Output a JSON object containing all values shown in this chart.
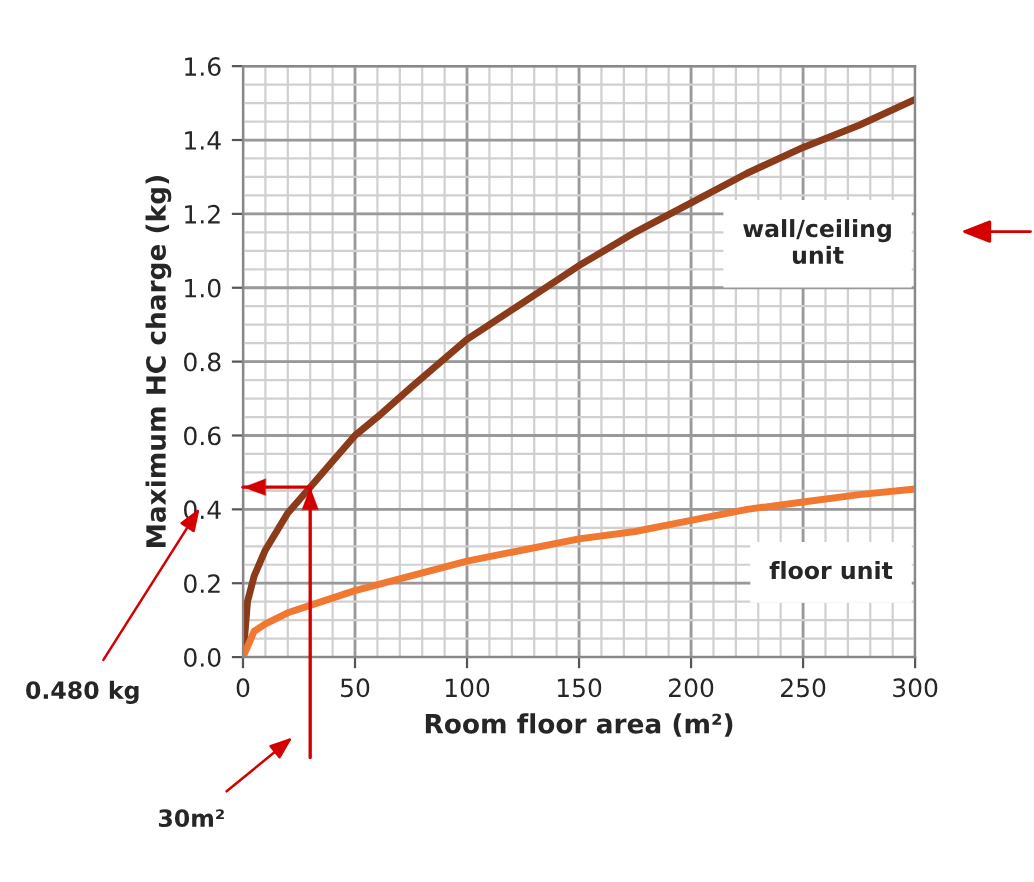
{
  "chart_data": {
    "type": "line",
    "xlabel": "Room floor area (m²)",
    "ylabel": "Maximum HC charge (kg)",
    "xlim": [
      0,
      300
    ],
    "xticks": [
      0,
      50,
      100,
      150,
      200,
      250,
      300
    ],
    "ylim": [
      0,
      1.6
    ],
    "yticks": [
      {
        "value": 0,
        "label": "0.0"
      },
      {
        "value": 0.2,
        "label": "0.2"
      },
      {
        "value": 0.4,
        "label": "0.4"
      },
      {
        "value": 0.6,
        "label": "0.6"
      },
      {
        "value": 0.8,
        "label": "0.8"
      },
      {
        "value": 1.0,
        "label": "1.0"
      },
      {
        "value": 1.2,
        "label": "1.2"
      },
      {
        "value": 1.4,
        "label": "1.4"
      },
      {
        "value": 1.6,
        "label": "1.6"
      }
    ],
    "grid": true,
    "legend": false,
    "marker": "none",
    "line_style": "solid",
    "series": [
      {
        "name": "wall/ceiling unit",
        "color": "#8b3a1a",
        "x": [
          0,
          2,
          5,
          10,
          20,
          30,
          40,
          50,
          60,
          75,
          100,
          125,
          150,
          175,
          200,
          225,
          250,
          275,
          300
        ],
        "values": [
          0,
          0.15,
          0.22,
          0.29,
          0.39,
          0.46,
          0.53,
          0.6,
          0.65,
          0.73,
          0.86,
          0.96,
          1.06,
          1.15,
          1.23,
          1.31,
          1.38,
          1.44,
          1.51
        ]
      },
      {
        "name": "floor unit",
        "color": "#f07830",
        "x": [
          0,
          5,
          10,
          20,
          30,
          50,
          75,
          100,
          125,
          150,
          175,
          200,
          225,
          250,
          275,
          300
        ],
        "values": [
          0,
          0.07,
          0.09,
          0.12,
          0.14,
          0.18,
          0.22,
          0.26,
          0.29,
          0.32,
          0.34,
          0.37,
          0.4,
          0.42,
          0.44,
          0.455
        ]
      }
    ],
    "ref_lines": [
      {
        "axis": "x",
        "value": 30,
        "color": "#d40000"
      },
      {
        "axis": "y",
        "value": 0.46,
        "color": "#d40000"
      }
    ],
    "annotations": [
      "0.480 kg",
      "30m²"
    ]
  }
}
